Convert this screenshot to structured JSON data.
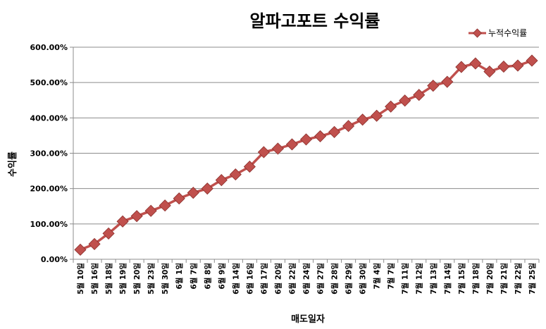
{
  "chart_data": {
    "type": "line",
    "title": "알파고포트 수익률",
    "ylabel": "수익률",
    "xlabel": "매도일자",
    "ylim": [
      0,
      600
    ],
    "y_ticks": [
      "0.00%",
      "100.00%",
      "200.00%",
      "300.00%",
      "400.00%",
      "500.00%",
      "600.00%"
    ],
    "grid": "horizontal",
    "legend_position": "top-right",
    "line_color": "#c0504d",
    "marker_color": "#c0504d",
    "marker": "diamond",
    "categories": [
      "5월 10일",
      "5월 16일",
      "5월 18일",
      "5월 19일",
      "5월 20일",
      "5월 23일",
      "5월 30일",
      "6월 1일",
      "6월 7일",
      "6월 8일",
      "6월 9일",
      "6월 14일",
      "6월 16일",
      "6월 17일",
      "6월 20일",
      "6월 22일",
      "6월 24일",
      "6월 27일",
      "6월 28일",
      "6월 29일",
      "6월 30일",
      "7월 4일",
      "7월 7일",
      "7월 11일",
      "7월 12일",
      "7월 13일",
      "7월 14일",
      "7월 15일",
      "7월 18일",
      "7월 20일",
      "7월 21일",
      "7월 22일",
      "7월 25일"
    ],
    "series": [
      {
        "name": "누적수익률",
        "values": [
          27,
          43,
          73,
          107,
          122,
          137,
          152,
          172,
          188,
          200,
          224,
          240,
          262,
          303,
          313,
          325,
          339,
          348,
          360,
          377,
          395,
          406,
          432,
          449,
          465,
          491,
          502,
          544,
          554,
          531,
          545,
          548,
          562
        ]
      }
    ]
  }
}
